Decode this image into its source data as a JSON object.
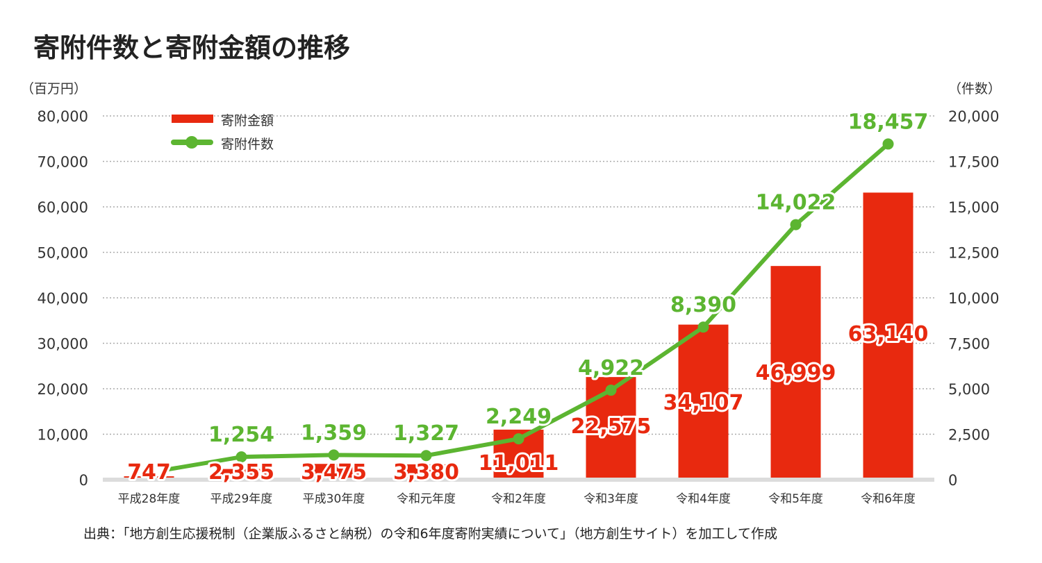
{
  "chart_data": {
    "type": "bar+line",
    "title": "寄附件数と寄附金額の推移",
    "ylabel_left": "（百万円）",
    "ylabel_right": "（件数）",
    "categories": [
      "平成28年度",
      "平成29年度",
      "平成30年度",
      "令和元年度",
      "令和2年度",
      "令和3年度",
      "令和4年度",
      "令和5年度",
      "令和6年度"
    ],
    "series": [
      {
        "name": "寄附金額",
        "type": "bar",
        "axis": "left",
        "color": "#e8290f",
        "values": [
          747,
          2355,
          3475,
          3380,
          11011,
          22575,
          34107,
          46999,
          63140
        ],
        "labels": [
          "747",
          "2,355",
          "3,475",
          "3,380",
          "11,011",
          "22,575",
          "34,107",
          "46,999",
          "63,140"
        ]
      },
      {
        "name": "寄附件数",
        "type": "line",
        "axis": "right",
        "color": "#5cb531",
        "values": [
          517,
          1254,
          1359,
          1327,
          2249,
          4922,
          8390,
          14022,
          18457
        ],
        "labels": [
          "",
          "1,254",
          "1,359",
          "1,327",
          "2,249",
          "4,922",
          "8,390",
          "14,022",
          "18,457"
        ]
      }
    ],
    "ylim_left": [
      0,
      80000
    ],
    "ylim_right": [
      0,
      20000
    ],
    "yticks_left": [
      "0",
      "10,000",
      "20,000",
      "30,000",
      "40,000",
      "50,000",
      "60,000",
      "70,000",
      "80,000"
    ],
    "yticks_right": [
      "0",
      "2,500",
      "5,000",
      "7,500",
      "10,000",
      "12,500",
      "15,000",
      "17,500",
      "20,000"
    ],
    "grid": "horizontal dotted",
    "legend": "top-left",
    "source": "出典：「地方創生応援税制（企業版ふるさと納税）の令和6年度寄附実績について」（地方創生サイト）を加工して作成"
  }
}
